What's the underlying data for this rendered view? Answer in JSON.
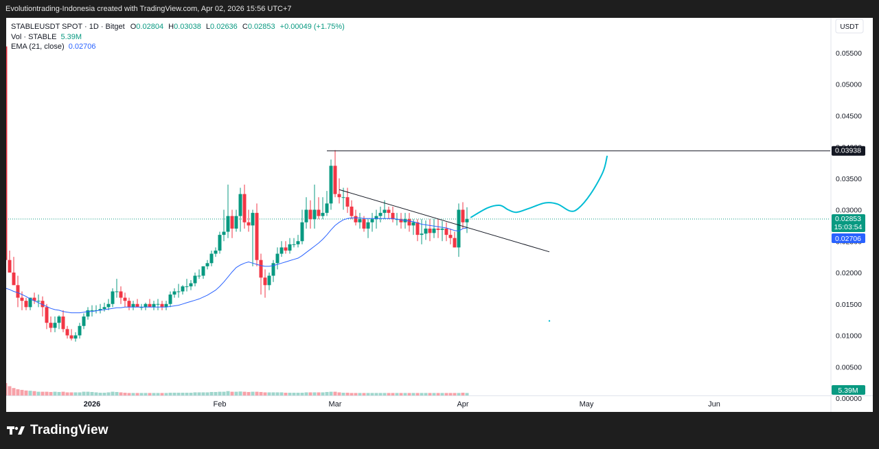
{
  "header_text": "Evolutiontrading-Indonesia created with TradingView.com, Apr 02, 2026 15:56 UTC+7",
  "legend": {
    "symbol": "STABLEUSDT SPOT · 1D · Bitget",
    "open_label": "O",
    "open": "0.02804",
    "high_label": "H",
    "high": "0.03038",
    "low_label": "L",
    "low": "0.02636",
    "close_label": "C",
    "close": "0.02853",
    "change": "+0.00049 (+1.75%)",
    "volume_label": "Vol · STABLE",
    "volume": "5.39M",
    "ema_label": "EMA (21, close)",
    "ema": "0.02706"
  },
  "price_axis": {
    "currency": "USDT",
    "ticks": [
      "0.05500",
      "0.05000",
      "0.04500",
      "0.04000",
      "0.03500",
      "0.03000",
      "0.02500",
      "0.02000",
      "0.01500",
      "0.01000",
      "0.00500",
      "0.00000"
    ],
    "last_price": "0.02853",
    "countdown": "15:03:54",
    "ema_value": "0.02706",
    "level_line": "0.03938",
    "volume_badge": "5.39M"
  },
  "time_axis": {
    "labels": [
      "2026",
      "Feb",
      "Mar",
      "Apr",
      "May",
      "Jun"
    ]
  },
  "colors": {
    "up": "#089981",
    "down": "#f23645",
    "ema": "#2962ff",
    "projection": "#00bcd4",
    "vol_up": "#9fd6cc",
    "vol_down": "#f7a1a8"
  },
  "brand": {
    "name": "TradingView",
    "icon": "tradingview-logo-icon"
  },
  "chart_data": {
    "type": "candlestick",
    "interval": "1D",
    "ylim": [
      0,
      0.0585
    ],
    "x_dates": [
      "2025-12-11",
      "2025-12-12",
      "2025-12-13",
      "2025-12-14",
      "2025-12-15",
      "2025-12-16",
      "2025-12-17",
      "2025-12-18",
      "2025-12-19",
      "2025-12-20",
      "2025-12-21",
      "2025-12-22",
      "2025-12-23",
      "2025-12-24",
      "2025-12-25",
      "2025-12-26",
      "2025-12-27",
      "2025-12-28",
      "2025-12-29",
      "2025-12-30",
      "2025-12-31",
      "2026-01-01",
      "2026-01-02",
      "2026-01-03",
      "2026-01-04",
      "2026-01-05",
      "2026-01-06",
      "2026-01-07",
      "2026-01-08",
      "2026-01-09",
      "2026-01-10",
      "2026-01-11",
      "2026-01-12",
      "2026-01-13",
      "2026-01-14",
      "2026-01-15",
      "2026-01-16",
      "2026-01-17",
      "2026-01-18",
      "2026-01-19",
      "2026-01-20",
      "2026-01-21",
      "2026-01-22",
      "2026-01-23",
      "2026-01-24",
      "2026-01-25",
      "2026-01-26",
      "2026-01-27",
      "2026-01-28",
      "2026-01-29",
      "2026-01-30",
      "2026-01-31",
      "2026-02-01",
      "2026-02-02",
      "2026-02-03",
      "2026-02-04",
      "2026-02-05",
      "2026-02-06",
      "2026-02-07",
      "2026-02-08",
      "2026-02-09",
      "2026-02-10",
      "2026-02-11",
      "2026-02-12",
      "2026-02-13",
      "2026-02-14",
      "2026-02-15",
      "2026-02-16",
      "2026-02-17",
      "2026-02-18",
      "2026-02-19",
      "2026-02-20",
      "2026-02-21",
      "2026-02-22",
      "2026-02-23",
      "2026-02-24",
      "2026-02-25",
      "2026-02-26",
      "2026-02-27",
      "2026-02-28",
      "2026-03-01",
      "2026-03-02",
      "2026-03-03",
      "2026-03-04",
      "2026-03-05",
      "2026-03-06",
      "2026-03-07",
      "2026-03-08",
      "2026-03-09",
      "2026-03-10",
      "2026-03-11",
      "2026-03-12",
      "2026-03-13",
      "2026-03-14",
      "2026-03-15",
      "2026-03-16",
      "2026-03-17",
      "2026-03-18",
      "2026-03-19",
      "2026-03-20",
      "2026-03-21",
      "2026-03-22",
      "2026-03-23",
      "2026-03-24",
      "2026-03-25",
      "2026-03-26",
      "2026-03-27",
      "2026-03-28",
      "2026-03-29",
      "2026-03-30",
      "2026-03-31",
      "2026-04-01",
      "2026-04-02"
    ],
    "open": [
      0.056,
      0.022,
      0.02,
      0.018,
      0.016,
      0.0155,
      0.0145,
      0.016,
      0.0155,
      0.0155,
      0.0145,
      0.012,
      0.0112,
      0.012,
      0.013,
      0.011,
      0.01,
      0.0095,
      0.01,
      0.0115,
      0.013,
      0.014,
      0.014,
      0.014,
      0.0142,
      0.0145,
      0.015,
      0.017,
      0.017,
      0.016,
      0.0155,
      0.0145,
      0.015,
      0.0145,
      0.0145,
      0.015,
      0.0145,
      0.015,
      0.015,
      0.0145,
      0.015,
      0.0165,
      0.017,
      0.017,
      0.0178,
      0.0178,
      0.0183,
      0.0195,
      0.0195,
      0.021,
      0.0215,
      0.023,
      0.0235,
      0.026,
      0.0265,
      0.029,
      0.027,
      0.029,
      0.0325,
      0.028,
      0.0275,
      0.0295,
      0.022,
      0.0192,
      0.018,
      0.0195,
      0.0215,
      0.023,
      0.024,
      0.0235,
      0.0245,
      0.0245,
      0.025,
      0.028,
      0.03,
      0.0285,
      0.03,
      0.029,
      0.0295,
      0.031,
      0.037,
      0.0325,
      0.032,
      0.032,
      0.0305,
      0.029,
      0.028,
      0.0285,
      0.027,
      0.028,
      0.0285,
      0.029,
      0.0295,
      0.03,
      0.0295,
      0.0285,
      0.0285,
      0.028,
      0.0285,
      0.0275,
      0.028,
      0.026,
      0.0262,
      0.027,
      0.0263,
      0.027,
      0.0268,
      0.027,
      0.026,
      0.0255,
      0.024,
      0.03,
      0.028
    ],
    "high": [
      0.057,
      0.0235,
      0.0225,
      0.0195,
      0.017,
      0.016,
      0.016,
      0.0168,
      0.0165,
      0.0162,
      0.015,
      0.013,
      0.013,
      0.0132,
      0.014,
      0.0115,
      0.011,
      0.0105,
      0.012,
      0.0135,
      0.0145,
      0.0148,
      0.0148,
      0.015,
      0.0152,
      0.0158,
      0.0175,
      0.019,
      0.0178,
      0.0168,
      0.016,
      0.0155,
      0.0158,
      0.015,
      0.0152,
      0.0158,
      0.0155,
      0.0158,
      0.0155,
      0.0155,
      0.017,
      0.0175,
      0.0182,
      0.018,
      0.019,
      0.0188,
      0.02,
      0.0205,
      0.021,
      0.022,
      0.0235,
      0.024,
      0.0265,
      0.03,
      0.034,
      0.03,
      0.03,
      0.0335,
      0.034,
      0.03,
      0.03,
      0.031,
      0.023,
      0.0205,
      0.02,
      0.022,
      0.024,
      0.025,
      0.025,
      0.0255,
      0.0255,
      0.026,
      0.03,
      0.032,
      0.0315,
      0.034,
      0.032,
      0.032,
      0.033,
      0.038,
      0.0395,
      0.035,
      0.0335,
      0.0335,
      0.0315,
      0.03,
      0.0295,
      0.029,
      0.0285,
      0.0295,
      0.03,
      0.0305,
      0.0315,
      0.0305,
      0.0305,
      0.0295,
      0.0295,
      0.0295,
      0.0295,
      0.0285,
      0.0285,
      0.0285,
      0.0283,
      0.0285,
      0.0285,
      0.0285,
      0.0282,
      0.028,
      0.027,
      0.0265,
      0.031,
      0.0312,
      0.0304
    ],
    "low": [
      0.003,
      0.02,
      0.018,
      0.0145,
      0.014,
      0.014,
      0.014,
      0.015,
      0.0145,
      0.013,
      0.011,
      0.0105,
      0.0105,
      0.011,
      0.0105,
      0.0095,
      0.0092,
      0.009,
      0.0095,
      0.011,
      0.0125,
      0.013,
      0.0135,
      0.0135,
      0.0138,
      0.014,
      0.0145,
      0.016,
      0.015,
      0.0145,
      0.014,
      0.014,
      0.0145,
      0.014,
      0.014,
      0.0145,
      0.014,
      0.014,
      0.014,
      0.014,
      0.0145,
      0.016,
      0.016,
      0.0165,
      0.017,
      0.0172,
      0.0178,
      0.019,
      0.019,
      0.0205,
      0.021,
      0.0225,
      0.023,
      0.025,
      0.0255,
      0.0255,
      0.0265,
      0.0265,
      0.027,
      0.0265,
      0.021,
      0.021,
      0.0165,
      0.016,
      0.0172,
      0.0185,
      0.0205,
      0.0225,
      0.023,
      0.023,
      0.024,
      0.024,
      0.0245,
      0.027,
      0.027,
      0.027,
      0.0285,
      0.0285,
      0.029,
      0.03,
      0.032,
      0.031,
      0.03,
      0.0295,
      0.0285,
      0.0275,
      0.027,
      0.0265,
      0.0255,
      0.0265,
      0.027,
      0.028,
      0.0285,
      0.0285,
      0.028,
      0.0275,
      0.027,
      0.027,
      0.0265,
      0.026,
      0.025,
      0.0245,
      0.0252,
      0.025,
      0.0255,
      0.0255,
      0.025,
      0.025,
      0.0245,
      0.024,
      0.0225,
      0.027,
      0.0263
    ],
    "close": [
      0.022,
      0.02,
      0.018,
      0.016,
      0.0155,
      0.0145,
      0.016,
      0.0155,
      0.0155,
      0.0145,
      0.012,
      0.0112,
      0.012,
      0.013,
      0.011,
      0.01,
      0.0095,
      0.01,
      0.0115,
      0.013,
      0.014,
      0.014,
      0.014,
      0.0142,
      0.0145,
      0.015,
      0.017,
      0.017,
      0.016,
      0.0155,
      0.0145,
      0.015,
      0.0145,
      0.0145,
      0.015,
      0.0145,
      0.015,
      0.015,
      0.0145,
      0.015,
      0.0165,
      0.017,
      0.017,
      0.0178,
      0.0178,
      0.0183,
      0.0195,
      0.0195,
      0.021,
      0.0215,
      0.023,
      0.0235,
      0.026,
      0.0265,
      0.029,
      0.027,
      0.029,
      0.0325,
      0.028,
      0.0275,
      0.0295,
      0.022,
      0.0192,
      0.018,
      0.0195,
      0.0215,
      0.023,
      0.024,
      0.0235,
      0.0245,
      0.0245,
      0.025,
      0.028,
      0.03,
      0.0285,
      0.03,
      0.029,
      0.0295,
      0.031,
      0.037,
      0.0325,
      0.032,
      0.032,
      0.0305,
      0.029,
      0.028,
      0.0285,
      0.027,
      0.028,
      0.0285,
      0.029,
      0.0295,
      0.03,
      0.0295,
      0.0285,
      0.0285,
      0.028,
      0.0285,
      0.0275,
      0.028,
      0.026,
      0.0262,
      0.027,
      0.0263,
      0.027,
      0.0268,
      0.027,
      0.026,
      0.0255,
      0.024,
      0.03,
      0.028,
      0.0285
    ],
    "volume_rel": [
      1.0,
      0.75,
      0.6,
      0.5,
      0.45,
      0.4,
      0.38,
      0.35,
      0.3,
      0.3,
      0.3,
      0.28,
      0.3,
      0.28,
      0.3,
      0.25,
      0.25,
      0.25,
      0.25,
      0.3,
      0.3,
      0.28,
      0.25,
      0.22,
      0.22,
      0.25,
      0.3,
      0.28,
      0.25,
      0.22,
      0.2,
      0.2,
      0.2,
      0.2,
      0.2,
      0.2,
      0.2,
      0.2,
      0.2,
      0.2,
      0.22,
      0.22,
      0.22,
      0.22,
      0.22,
      0.22,
      0.25,
      0.25,
      0.25,
      0.25,
      0.28,
      0.28,
      0.3,
      0.3,
      0.35,
      0.3,
      0.3,
      0.32,
      0.3,
      0.28,
      0.3,
      0.3,
      0.28,
      0.25,
      0.25,
      0.25,
      0.25,
      0.25,
      0.22,
      0.22,
      0.22,
      0.22,
      0.22,
      0.25,
      0.25,
      0.25,
      0.25,
      0.25,
      0.28,
      0.3,
      0.3,
      0.25,
      0.22,
      0.22,
      0.2,
      0.2,
      0.2,
      0.2,
      0.2,
      0.2,
      0.2,
      0.2,
      0.2,
      0.2,
      0.2,
      0.2,
      0.2,
      0.2,
      0.2,
      0.2,
      0.2,
      0.2,
      0.2,
      0.2,
      0.2,
      0.2,
      0.2,
      0.2,
      0.2,
      0.2,
      0.2,
      0.22,
      0.2
    ],
    "ema_21": [
      0.0175,
      0.0173,
      0.017,
      0.0168,
      0.0165,
      0.0162,
      0.0158,
      0.0155,
      0.0152,
      0.0149,
      0.0146,
      0.0143,
      0.0141,
      0.014,
      0.0138,
      0.0137,
      0.0136,
      0.0136,
      0.0136,
      0.0137,
      0.0138,
      0.0138,
      0.0139,
      0.014,
      0.0141,
      0.0142,
      0.0143,
      0.0144,
      0.0144,
      0.0145,
      0.0145,
      0.0145,
      0.0145,
      0.0145,
      0.0145,
      0.0145,
      0.0145,
      0.0145,
      0.0145,
      0.0145,
      0.0146,
      0.0147,
      0.0148,
      0.015,
      0.0152,
      0.0154,
      0.0156,
      0.0158,
      0.0161,
      0.0164,
      0.0168,
      0.0172,
      0.0178,
      0.0185,
      0.0193,
      0.0201,
      0.0208,
      0.0212,
      0.0215,
      0.0217,
      0.0215,
      0.0213,
      0.0211,
      0.021,
      0.021,
      0.0211,
      0.0213,
      0.0215,
      0.0217,
      0.0219,
      0.0221,
      0.0223,
      0.0227,
      0.0232,
      0.0237,
      0.0242,
      0.0247,
      0.0253,
      0.026,
      0.0268,
      0.0275,
      0.028,
      0.0284,
      0.0286,
      0.0287,
      0.0287,
      0.0287,
      0.0286,
      0.0286,
      0.0286,
      0.0286,
      0.0286,
      0.0286,
      0.0286,
      0.0286,
      0.0285,
      0.0284,
      0.0283,
      0.0282,
      0.0281,
      0.0279,
      0.0277,
      0.0276,
      0.0275,
      0.0274,
      0.0273,
      0.0272,
      0.0271,
      0.0269,
      0.0267,
      0.0266,
      0.027,
      0.0271
    ],
    "horizontal_line": {
      "value": 0.03938,
      "from": "2026-02-27",
      "to": "right-edge"
    },
    "trend_line": [
      {
        "date": "2026-03-02",
        "value": 0.0332
      },
      {
        "date": "2026-04-22",
        "value": 0.0233
      }
    ],
    "projection_path": [
      {
        "date": "2026-04-03",
        "value": 0.0288
      },
      {
        "date": "2026-04-07",
        "value": 0.0303
      },
      {
        "date": "2026-04-10",
        "value": 0.0307
      },
      {
        "date": "2026-04-12",
        "value": 0.03
      },
      {
        "date": "2026-04-14",
        "value": 0.0296
      },
      {
        "date": "2026-04-17",
        "value": 0.0302
      },
      {
        "date": "2026-04-21",
        "value": 0.0311
      },
      {
        "date": "2026-04-24",
        "value": 0.0309
      },
      {
        "date": "2026-04-27",
        "value": 0.0298
      },
      {
        "date": "2026-04-29",
        "value": 0.0302
      },
      {
        "date": "2026-05-02",
        "value": 0.0325
      },
      {
        "date": "2026-05-05",
        "value": 0.036
      },
      {
        "date": "2026-05-06",
        "value": 0.0385
      }
    ],
    "projection_dot": {
      "date": "2026-04-22",
      "value": 0.0123
    },
    "x_ticks": [
      {
        "label": "2026",
        "date": "2026-01-01"
      },
      {
        "label": "Feb",
        "date": "2026-02-01"
      },
      {
        "label": "Mar",
        "date": "2026-03-01"
      },
      {
        "label": "Apr",
        "date": "2026-04-01"
      },
      {
        "label": "May",
        "date": "2026-05-01"
      },
      {
        "label": "Jun",
        "date": "2026-06-01"
      }
    ],
    "y_ticks": [
      0.055,
      0.05,
      0.045,
      0.04,
      0.035,
      0.03,
      0.025,
      0.02,
      0.015,
      0.01,
      0.005,
      0.0
    ]
  }
}
